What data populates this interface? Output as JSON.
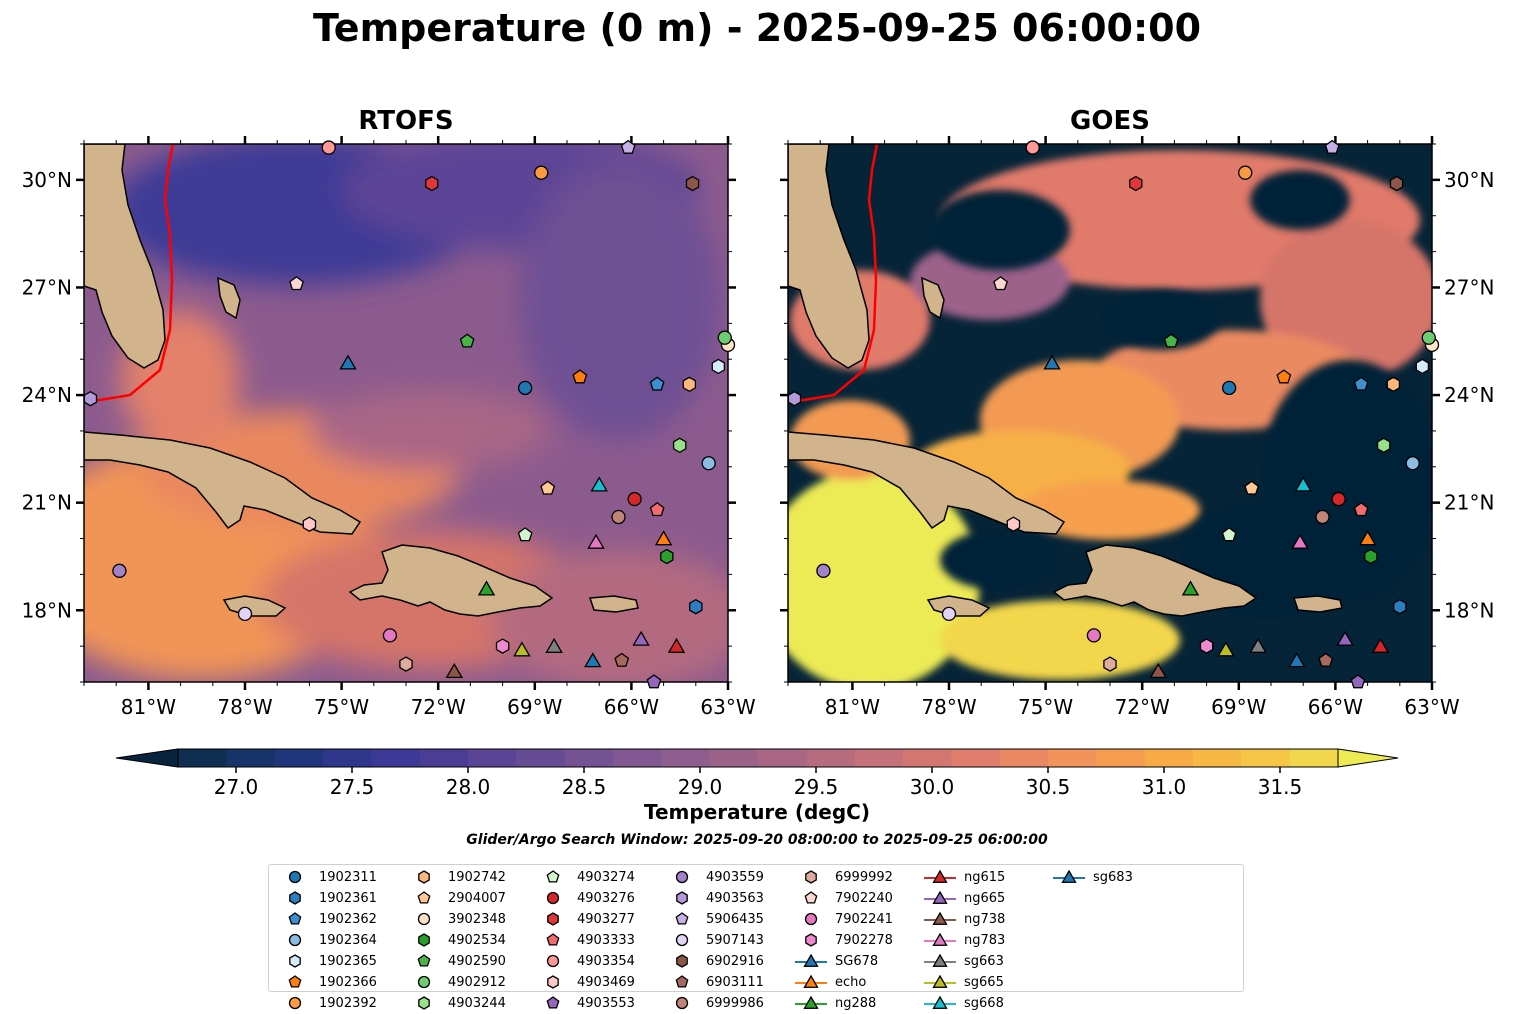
{
  "title": "Temperature (0 m) - 2025-09-25 06:00:00",
  "panels": [
    {
      "title": "RTOFS",
      "lat_labels_side": "left"
    },
    {
      "title": "GOES",
      "lat_labels_side": "right"
    }
  ],
  "colorbar": {
    "label": "Temperature (degC)",
    "ticks": [
      "27.0",
      "27.5",
      "28.0",
      "28.5",
      "29.0",
      "29.5",
      "30.0",
      "30.5",
      "31.0",
      "31.5"
    ],
    "colors": [
      "#09233c",
      "#0f2e52",
      "#16336a",
      "#21357d",
      "#2e378c",
      "#3b3995",
      "#4b3d96",
      "#5a4496",
      "#664b95",
      "#745294",
      "#825892",
      "#8f5d8e",
      "#9c628a",
      "#a96685",
      "#b76b7f",
      "#c67079",
      "#d37672",
      "#de7d6b",
      "#e98862",
      "#f29359",
      "#f69e4f",
      "#f8aa47",
      "#f8b844",
      "#f6c647",
      "#f2d64b",
      "#edea53"
    ]
  },
  "search_window": "Glider/Argo Search Window: 2025-09-20 08:00:00 to 2025-09-25 06:00:00",
  "legend": [
    {
      "label": "1902311",
      "shape": "circle",
      "color": "#1f77b4"
    },
    {
      "label": "1902361",
      "shape": "hexagon",
      "color": "#2b7fc0"
    },
    {
      "label": "1902362",
      "shape": "pentagon",
      "color": "#3d8fd0"
    },
    {
      "label": "1902364",
      "shape": "circle",
      "color": "#8bbce3"
    },
    {
      "label": "1902365",
      "shape": "hexagon",
      "color": "#d6eaf8"
    },
    {
      "label": "1902366",
      "shape": "pentagon",
      "color": "#ff7f0e"
    },
    {
      "label": "1902392",
      "shape": "circle",
      "color": "#fd9a40"
    },
    {
      "label": "1902742",
      "shape": "hexagon",
      "color": "#ffb67a"
    },
    {
      "label": "2904007",
      "shape": "pentagon",
      "color": "#ffc894"
    },
    {
      "label": "3902348",
      "shape": "circle",
      "color": "#ffe3c7"
    },
    {
      "label": "4902534",
      "shape": "hexagon",
      "color": "#2ca02c"
    },
    {
      "label": "4902590",
      "shape": "pentagon",
      "color": "#48b448"
    },
    {
      "label": "4902912",
      "shape": "circle",
      "color": "#6fcb6f"
    },
    {
      "label": "4903244",
      "shape": "hexagon",
      "color": "#98df8a"
    },
    {
      "label": "4903274",
      "shape": "pentagon",
      "color": "#d3f5cc"
    },
    {
      "label": "4903276",
      "shape": "circle",
      "color": "#d62728"
    },
    {
      "label": "4903277",
      "shape": "hexagon",
      "color": "#e0383a"
    },
    {
      "label": "4903333",
      "shape": "pentagon",
      "color": "#f26b6d"
    },
    {
      "label": "4903354",
      "shape": "circle",
      "color": "#ff9896"
    },
    {
      "label": "4903469",
      "shape": "hexagon",
      "color": "#ffc8c7"
    },
    {
      "label": "4903553",
      "shape": "pentagon",
      "color": "#9467bd"
    },
    {
      "label": "4903559",
      "shape": "circle",
      "color": "#a283c9"
    },
    {
      "label": "4903563",
      "shape": "hexagon",
      "color": "#b29ad8"
    },
    {
      "label": "5906435",
      "shape": "pentagon",
      "color": "#c5b0e8"
    },
    {
      "label": "5907143",
      "shape": "circle",
      "color": "#e3d3f7"
    },
    {
      "label": "6902916",
      "shape": "hexagon",
      "color": "#8c564b"
    },
    {
      "label": "6903111",
      "shape": "pentagon",
      "color": "#a6695e"
    },
    {
      "label": "6999986",
      "shape": "circle",
      "color": "#c08578"
    },
    {
      "label": "6999992",
      "shape": "hexagon",
      "color": "#e0ab9f"
    },
    {
      "label": "7902240",
      "shape": "pentagon",
      "color": "#fbd7cf"
    },
    {
      "label": "7902241",
      "shape": "circle",
      "color": "#e377c2"
    },
    {
      "label": "7902278",
      "shape": "hexagon",
      "color": "#f08ad0"
    },
    {
      "label": "SG678",
      "shape": "triangle-line",
      "color": "#1f77b4"
    },
    {
      "label": "echo",
      "shape": "triangle-line",
      "color": "#ff7f0e"
    },
    {
      "label": "ng288",
      "shape": "triangle-line",
      "color": "#2ca02c"
    },
    {
      "label": "ng615",
      "shape": "triangle-line",
      "color": "#d62728"
    },
    {
      "label": "ng665",
      "shape": "triangle-line",
      "color": "#9467bd"
    },
    {
      "label": "ng738",
      "shape": "triangle-line",
      "color": "#8c564b"
    },
    {
      "label": "ng783",
      "shape": "triangle-line",
      "color": "#e377c2"
    },
    {
      "label": "sg663",
      "shape": "triangle-line",
      "color": "#7f7f7f"
    },
    {
      "label": "sg665",
      "shape": "triangle-line",
      "color": "#bcbd22"
    },
    {
      "label": "sg668",
      "shape": "triangle-line",
      "color": "#17becf"
    },
    {
      "label": "sg683",
      "shape": "triangle-line",
      "color": "#1f77b4"
    }
  ],
  "chart_data": {
    "type": "map",
    "variable": "Temperature (0 m)",
    "units": "degC",
    "time": "2025-09-25 06:00:00",
    "extent": {
      "lon": [
        -83,
        -63
      ],
      "lat": [
        16,
        31
      ]
    },
    "lon_ticks": [
      -81,
      -78,
      -75,
      -72,
      -69,
      -66,
      -63
    ],
    "lon_tick_labels": [
      "81°W",
      "78°W",
      "75°W",
      "72°W",
      "69°W",
      "66°W",
      "63°W"
    ],
    "lat_ticks": [
      18,
      21,
      24,
      27,
      30
    ],
    "lat_tick_labels": [
      "18°N",
      "21°N",
      "24°N",
      "27°N",
      "30°N"
    ],
    "color_range": [
      26.75,
      31.75
    ],
    "land_color": "#d2b48c",
    "gulf_stream_color": "#ff0000",
    "markers": [
      {
        "id": "1902311",
        "lon": -69.3,
        "lat": 24.2
      },
      {
        "id": "1902361",
        "lon": -64.0,
        "lat": 18.1
      },
      {
        "id": "1902362",
        "lon": -65.2,
        "lat": 24.3
      },
      {
        "id": "1902364",
        "lon": -63.6,
        "lat": 22.1
      },
      {
        "id": "1902365",
        "lon": -63.3,
        "lat": 24.8
      },
      {
        "id": "1902366",
        "lon": -67.6,
        "lat": 24.5
      },
      {
        "id": "1902392",
        "lon": -68.8,
        "lat": 30.2
      },
      {
        "id": "1902742",
        "lon": -64.2,
        "lat": 24.3
      },
      {
        "id": "2904007",
        "lon": -68.6,
        "lat": 21.4
      },
      {
        "id": "3902348",
        "lon": -63.0,
        "lat": 25.4
      },
      {
        "id": "4902534",
        "lon": -64.9,
        "lat": 19.5
      },
      {
        "id": "4902590",
        "lon": -71.1,
        "lat": 25.5
      },
      {
        "id": "4902912",
        "lon": -63.1,
        "lat": 25.6
      },
      {
        "id": "4903244",
        "lon": -64.5,
        "lat": 22.6
      },
      {
        "id": "4903274",
        "lon": -69.3,
        "lat": 20.1
      },
      {
        "id": "4903276",
        "lon": -65.9,
        "lat": 21.1
      },
      {
        "id": "4903277",
        "lon": -72.2,
        "lat": 29.9
      },
      {
        "id": "4903333",
        "lon": -65.2,
        "lat": 20.8
      },
      {
        "id": "4903354",
        "lon": -75.4,
        "lat": 30.9
      },
      {
        "id": "4903469",
        "lon": -76.0,
        "lat": 20.4
      },
      {
        "id": "4903553",
        "lon": -65.3,
        "lat": 16.0
      },
      {
        "id": "4903559",
        "lon": -81.9,
        "lat": 19.1
      },
      {
        "id": "4903563",
        "lon": -82.8,
        "lat": 23.9
      },
      {
        "id": "5906435",
        "lon": -66.1,
        "lat": 30.9
      },
      {
        "id": "5907143",
        "lon": -78.0,
        "lat": 17.9
      },
      {
        "id": "6902916",
        "lon": -64.1,
        "lat": 29.9
      },
      {
        "id": "6903111",
        "lon": -66.3,
        "lat": 16.6
      },
      {
        "id": "6999986",
        "lon": -66.4,
        "lat": 20.6
      },
      {
        "id": "6999992",
        "lon": -73.0,
        "lat": 16.5
      },
      {
        "id": "7902240",
        "lon": -76.4,
        "lat": 27.1
      },
      {
        "id": "7902241",
        "lon": -73.5,
        "lat": 17.3
      },
      {
        "id": "7902278",
        "lon": -70.0,
        "lat": 17.0
      },
      {
        "id": "SG678",
        "lon": -74.8,
        "lat": 24.9
      },
      {
        "id": "echo",
        "lon": -65.0,
        "lat": 20.0
      },
      {
        "id": "ng288",
        "lon": -70.5,
        "lat": 18.6
      },
      {
        "id": "ng615",
        "lon": -64.6,
        "lat": 17.0
      },
      {
        "id": "ng665",
        "lon": -65.7,
        "lat": 17.2
      },
      {
        "id": "ng738",
        "lon": -71.5,
        "lat": 16.3
      },
      {
        "id": "ng783",
        "lon": -67.1,
        "lat": 19.9
      },
      {
        "id": "sg663",
        "lon": -68.4,
        "lat": 17.0
      },
      {
        "id": "sg665",
        "lon": -69.4,
        "lat": 16.9
      },
      {
        "id": "sg668",
        "lon": -67.0,
        "lat": 21.5
      },
      {
        "id": "sg683",
        "lon": -67.2,
        "lat": 16.6
      }
    ]
  }
}
